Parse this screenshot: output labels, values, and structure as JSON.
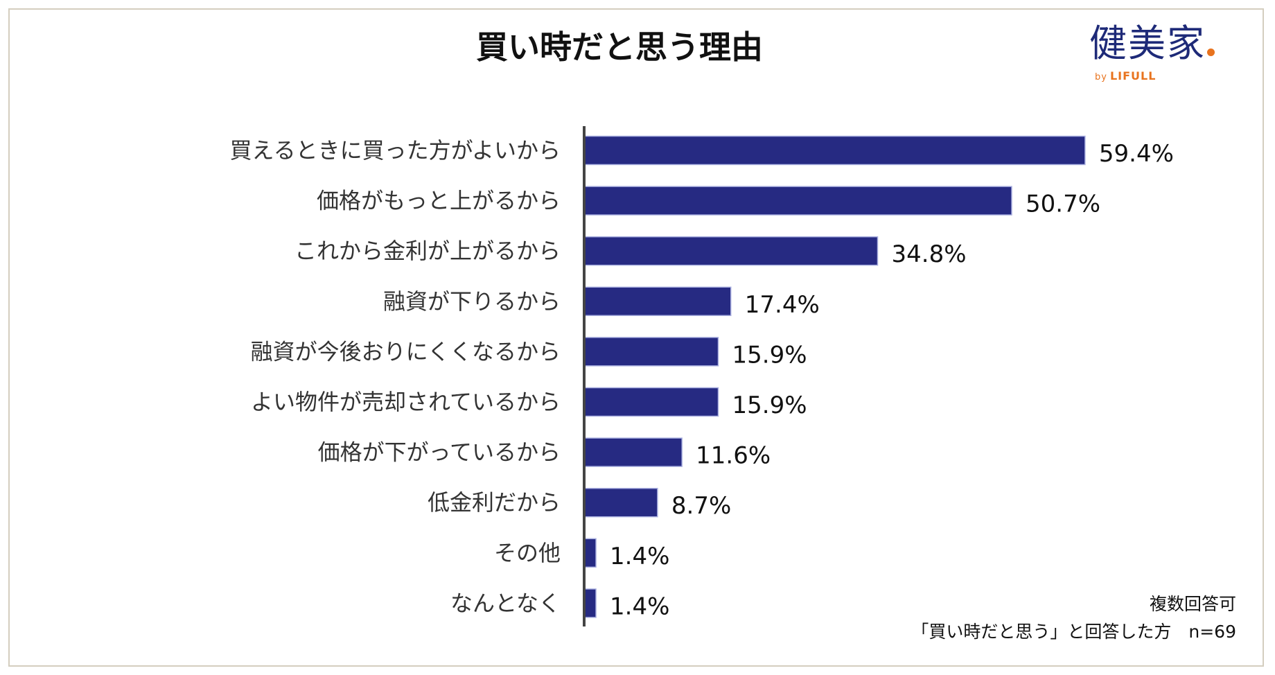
{
  "chart_data": {
    "type": "bar",
    "orientation": "horizontal",
    "title": "買い時だと思う理由",
    "categories": [
      "買えるときに買った方がよいから",
      "価格がもっと上がるから",
      "これから金利が上がるから",
      "融資が下りるから",
      "融資が今後おりにくくなるから",
      "よい物件が売却されているから",
      "価格が下がっているから",
      "低金利だから",
      "その他",
      "なんとなく"
    ],
    "values": [
      59.4,
      50.7,
      34.8,
      17.4,
      15.9,
      15.9,
      11.6,
      8.7,
      1.4,
      1.4
    ],
    "value_labels": [
      "59.4%",
      "50.7%",
      "34.8%",
      "17.4%",
      "15.9%",
      "15.9%",
      "11.6%",
      "8.7%",
      "1.4%",
      "1.4%"
    ],
    "unit": "%",
    "xlim": [
      0,
      100
    ],
    "grid": false,
    "bar_color": "#262a82"
  },
  "logo": {
    "main": "健美家",
    "sub_by": "by",
    "sub_brand": "LIFULL",
    "main_color": "#1e2a78",
    "accent_color": "#e8731e"
  },
  "footer": {
    "note": "複数回答可",
    "sample": "「買い時だと思う」と回答した方　n=69"
  }
}
